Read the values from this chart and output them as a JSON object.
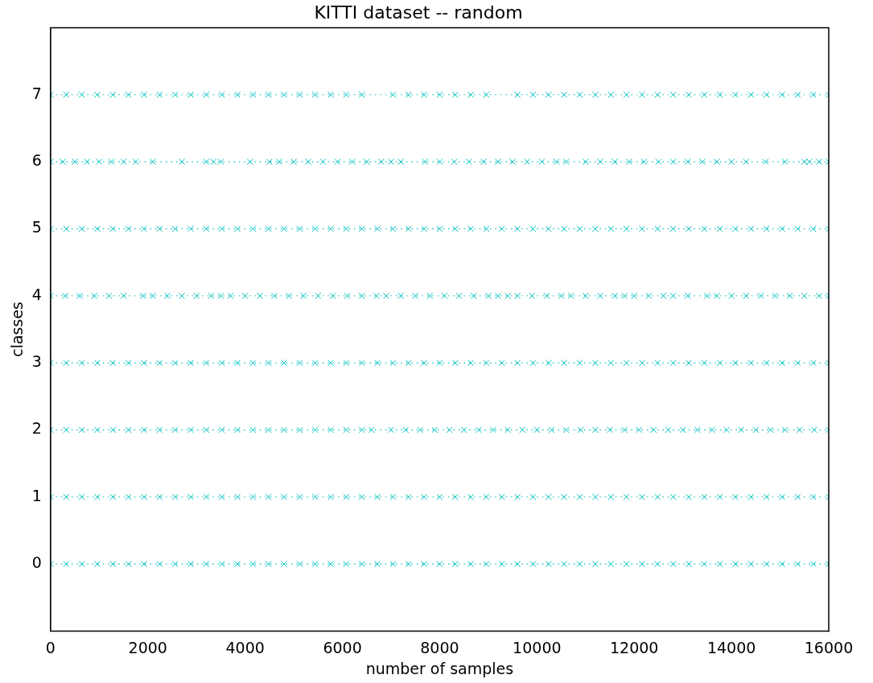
{
  "chart_data": {
    "type": "line",
    "title": "KITTI dataset -- random",
    "xlabel": "number of samples",
    "ylabel": "classes",
    "xlim": [
      0,
      16000
    ],
    "xticks": [
      0,
      2000,
      4000,
      6000,
      8000,
      10000,
      12000,
      14000,
      16000
    ],
    "ylim": [
      -1,
      8
    ],
    "yticks": [
      0,
      1,
      2,
      3,
      4,
      5,
      6,
      7
    ],
    "grid": false,
    "legend": false,
    "marker": "cross",
    "line_style": "dotted",
    "series": [
      {
        "color": "#00bfbf",
        "x": [
          0,
          320,
          640,
          960,
          1280,
          1600,
          1920,
          2240,
          2560,
          2880,
          3200,
          3520,
          3840,
          4160,
          4480,
          4800,
          5120,
          5440,
          5760,
          6080,
          6400,
          6720,
          7040,
          7360,
          7680,
          8000,
          8320,
          8640,
          8960,
          9280,
          9600,
          9920,
          10240,
          10560,
          10880,
          11200,
          11520,
          11840,
          12160,
          12480,
          12800,
          13120,
          13440,
          13760,
          14080,
          14400,
          14720,
          15040,
          15360,
          15680,
          16000
        ],
        "values": [
          0,
          0,
          0,
          0,
          0,
          0,
          0,
          0,
          0,
          0,
          0,
          0,
          0,
          0,
          0,
          0,
          0,
          0,
          0,
          0,
          0,
          0,
          0,
          0,
          0,
          0,
          0,
          0,
          0,
          0,
          0,
          0,
          0,
          0,
          0,
          0,
          0,
          0,
          0,
          0,
          0,
          0,
          0,
          0,
          0,
          0,
          0,
          0,
          0,
          0,
          0
        ]
      },
      {
        "color": "#00bfbf",
        "x": [
          0,
          320,
          640,
          960,
          1280,
          1600,
          1920,
          2240,
          2560,
          2880,
          3200,
          3520,
          3840,
          4160,
          4480,
          4800,
          5120,
          5440,
          5760,
          6080,
          6400,
          6720,
          7040,
          7360,
          7680,
          8000,
          8320,
          8640,
          8960,
          9280,
          9600,
          9920,
          10240,
          10560,
          10880,
          11200,
          11520,
          11840,
          12160,
          12480,
          12800,
          13120,
          13440,
          13760,
          14080,
          14400,
          14720,
          15040,
          15360,
          15680,
          16000
        ],
        "values": [
          1,
          1,
          1,
          1,
          1,
          1,
          1,
          1,
          1,
          1,
          1,
          1,
          1,
          1,
          1,
          1,
          1,
          1,
          1,
          1,
          1,
          1,
          1,
          1,
          1,
          1,
          1,
          1,
          1,
          1,
          1,
          1,
          1,
          1,
          1,
          1,
          1,
          1,
          1,
          1,
          1,
          1,
          1,
          1,
          1,
          1,
          1,
          1,
          1,
          1,
          1
        ]
      },
      {
        "color": "#00bfbf",
        "x": [
          0,
          320,
          640,
          960,
          1280,
          1600,
          1920,
          2240,
          2560,
          2880,
          3200,
          3520,
          3840,
          4160,
          4480,
          4800,
          5120,
          5440,
          5760,
          6080,
          6400,
          6600,
          7000,
          7300,
          7600,
          7900,
          8200,
          8500,
          8800,
          9100,
          9400,
          9700,
          10000,
          10300,
          10600,
          10900,
          11200,
          11500,
          11800,
          12100,
          12400,
          12700,
          13000,
          13300,
          13600,
          13900,
          14200,
          14500,
          14800,
          15100,
          15400,
          15700,
          16000
        ],
        "values": [
          2,
          2,
          2,
          2,
          2,
          2,
          2,
          2,
          2,
          2,
          2,
          2,
          2,
          2,
          2,
          2,
          2,
          2,
          2,
          2,
          2,
          2,
          2,
          2,
          2,
          2,
          2,
          2,
          2,
          2,
          2,
          2,
          2,
          2,
          2,
          2,
          2,
          2,
          2,
          2,
          2,
          2,
          2,
          2,
          2,
          2,
          2,
          2,
          2,
          2,
          2,
          2,
          2
        ]
      },
      {
        "color": "#00bfbf",
        "x": [
          0,
          320,
          640,
          960,
          1280,
          1600,
          1920,
          2240,
          2560,
          2880,
          3200,
          3520,
          3840,
          4160,
          4480,
          4800,
          5120,
          5440,
          5760,
          6080,
          6400,
          6720,
          7040,
          7360,
          7680,
          8000,
          8320,
          8640,
          8960,
          9280,
          9600,
          9920,
          10240,
          10560,
          10880,
          11200,
          11520,
          11840,
          12160,
          12480,
          12800,
          13120,
          13440,
          13760,
          14080,
          14400,
          14720,
          15040,
          15360,
          15680,
          16000
        ],
        "values": [
          3,
          3,
          3,
          3,
          3,
          3,
          3,
          3,
          3,
          3,
          3,
          3,
          3,
          3,
          3,
          3,
          3,
          3,
          3,
          3,
          3,
          3,
          3,
          3,
          3,
          3,
          3,
          3,
          3,
          3,
          3,
          3,
          3,
          3,
          3,
          3,
          3,
          3,
          3,
          3,
          3,
          3,
          3,
          3,
          3,
          3,
          3,
          3,
          3,
          3,
          3
        ]
      },
      {
        "color": "#00bfbf",
        "x": [
          0,
          300,
          600,
          900,
          1200,
          1500,
          1900,
          2100,
          2400,
          2700,
          3000,
          3300,
          3500,
          3700,
          4000,
          4300,
          4600,
          4900,
          5200,
          5500,
          5800,
          6100,
          6400,
          6700,
          6900,
          7200,
          7500,
          7800,
          8100,
          8400,
          8700,
          9000,
          9200,
          9400,
          9600,
          9900,
          10200,
          10500,
          10700,
          11000,
          11300,
          11600,
          11800,
          12000,
          12300,
          12600,
          12800,
          13100,
          13500,
          13700,
          14000,
          14300,
          14600,
          14900,
          15200,
          15500,
          15800,
          16000
        ],
        "values": [
          4,
          4,
          4,
          4,
          4,
          4,
          4,
          4,
          4,
          4,
          4,
          4,
          4,
          4,
          4,
          4,
          4,
          4,
          4,
          4,
          4,
          4,
          4,
          4,
          4,
          4,
          4,
          4,
          4,
          4,
          4,
          4,
          4,
          4,
          4,
          4,
          4,
          4,
          4,
          4,
          4,
          4,
          4,
          4,
          4,
          4,
          4,
          4,
          4,
          4,
          4,
          4,
          4,
          4,
          4,
          4,
          4,
          4
        ]
      },
      {
        "color": "#00bfbf",
        "x": [
          0,
          320,
          640,
          960,
          1280,
          1600,
          1920,
          2240,
          2560,
          2880,
          3200,
          3520,
          3840,
          4160,
          4480,
          4800,
          5120,
          5440,
          5760,
          6080,
          6400,
          6720,
          7040,
          7360,
          7680,
          8000,
          8320,
          8640,
          8960,
          9280,
          9600,
          9920,
          10240,
          10560,
          10880,
          11200,
          11520,
          11840,
          12160,
          12480,
          12800,
          13120,
          13440,
          13760,
          14080,
          14400,
          14720,
          15040,
          15360,
          15680,
          16000
        ],
        "values": [
          5,
          5,
          5,
          5,
          5,
          5,
          5,
          5,
          5,
          5,
          5,
          5,
          5,
          5,
          5,
          5,
          5,
          5,
          5,
          5,
          5,
          5,
          5,
          5,
          5,
          5,
          5,
          5,
          5,
          5,
          5,
          5,
          5,
          5,
          5,
          5,
          5,
          5,
          5,
          5,
          5,
          5,
          5,
          5,
          5,
          5,
          5,
          5,
          5,
          5,
          5
        ]
      },
      {
        "color": "#00bfbf",
        "x": [
          0,
          250,
          500,
          750,
          1000,
          1250,
          1500,
          1750,
          2100,
          2700,
          3200,
          3350,
          3500,
          4100,
          4500,
          4700,
          5000,
          5300,
          5600,
          5900,
          6200,
          6500,
          6800,
          7000,
          7200,
          7700,
          8000,
          8300,
          8600,
          8900,
          9200,
          9500,
          9800,
          10100,
          10400,
          10600,
          11000,
          11300,
          11600,
          11900,
          12200,
          12500,
          12800,
          13100,
          13400,
          13700,
          14000,
          14300,
          14700,
          15100,
          15500,
          15600,
          15800,
          16000
        ],
        "values": [
          6,
          6,
          6,
          6,
          6,
          6,
          6,
          6,
          6,
          6,
          6,
          6,
          6,
          6,
          6,
          6,
          6,
          6,
          6,
          6,
          6,
          6,
          6,
          6,
          6,
          6,
          6,
          6,
          6,
          6,
          6,
          6,
          6,
          6,
          6,
          6,
          6,
          6,
          6,
          6,
          6,
          6,
          6,
          6,
          6,
          6,
          6,
          6,
          6,
          6,
          6,
          6,
          6,
          6
        ]
      },
      {
        "color": "#00bfbf",
        "x": [
          0,
          320,
          640,
          960,
          1280,
          1600,
          1920,
          2240,
          2560,
          2880,
          3200,
          3520,
          3840,
          4160,
          4480,
          4800,
          5120,
          5440,
          5760,
          6080,
          6400,
          7040,
          7360,
          7680,
          8000,
          8320,
          8640,
          8960,
          9600,
          9920,
          10240,
          10560,
          10880,
          11200,
          11520,
          11840,
          12160,
          12480,
          12800,
          13120,
          13440,
          13760,
          14080,
          14400,
          14720,
          15040,
          15360,
          15680,
          16000
        ],
        "values": [
          7,
          7,
          7,
          7,
          7,
          7,
          7,
          7,
          7,
          7,
          7,
          7,
          7,
          7,
          7,
          7,
          7,
          7,
          7,
          7,
          7,
          7,
          7,
          7,
          7,
          7,
          7,
          7,
          7,
          7,
          7,
          7,
          7,
          7,
          7,
          7,
          7,
          7,
          7,
          7,
          7,
          7,
          7,
          7,
          7,
          7,
          7,
          7,
          7
        ]
      }
    ]
  }
}
